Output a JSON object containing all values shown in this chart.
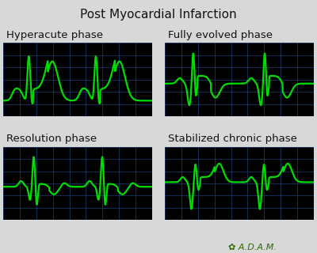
{
  "title": "Post Myocardial Infarction",
  "title_fontsize": 11,
  "title_color": "#111111",
  "bg_color": "#000000",
  "outer_bg": "#d8d8d8",
  "grid_color": "#1a3a6a",
  "ecg_color": "#00dd00",
  "ecg_linewidth": 1.6,
  "panel_titles": [
    "Hyperacute phase",
    "Fully evolved phase",
    "Resolution phase",
    "Stabilized chronic phase"
  ],
  "panel_title_fontsize": 9.5,
  "adam_color": "#2d6a00",
  "adam_fontsize": 8
}
